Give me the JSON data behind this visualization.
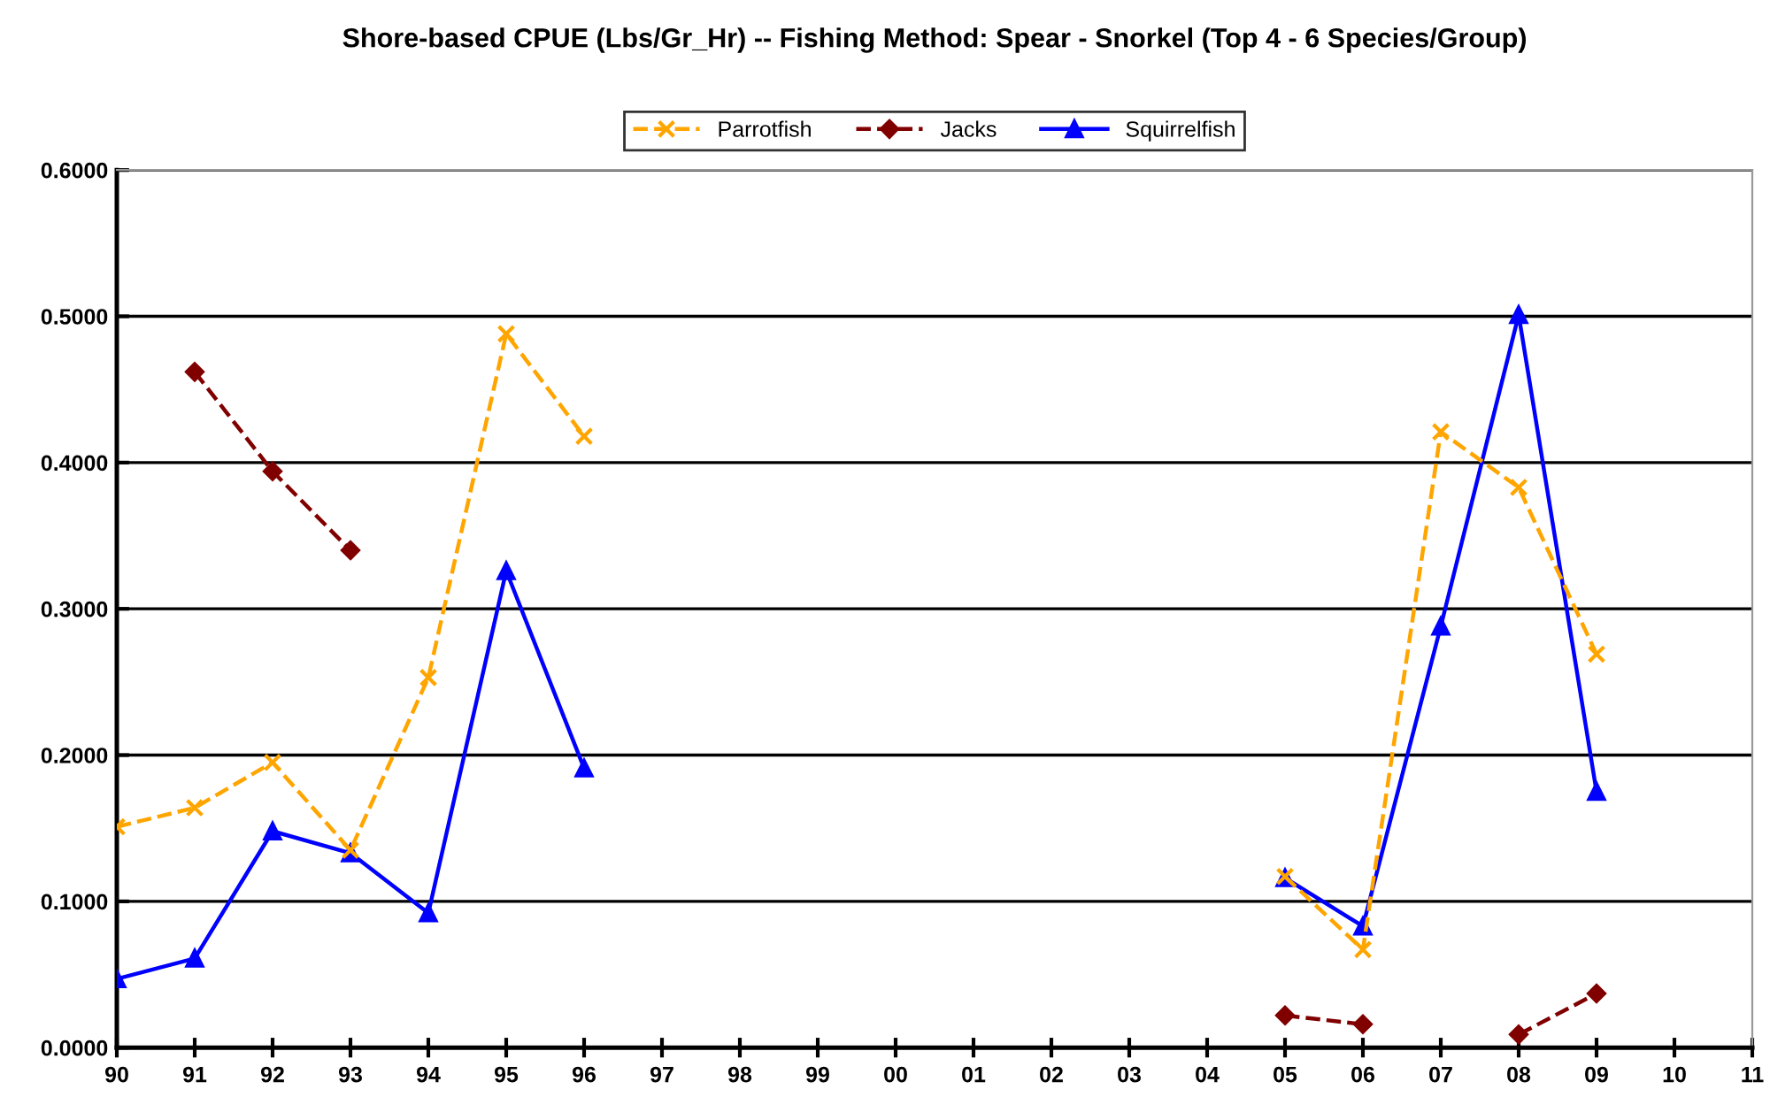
{
  "chart_data": {
    "type": "line",
    "title": "Shore-based CPUE (Lbs/Gr_Hr) -- Fishing Method: Spear - Snorkel (Top 4 - 6 Species/Group)",
    "categories": [
      "90",
      "91",
      "92",
      "93",
      "94",
      "95",
      "96",
      "97",
      "98",
      "99",
      "00",
      "01",
      "02",
      "03",
      "04",
      "05",
      "06",
      "07",
      "08",
      "09",
      "10",
      "11"
    ],
    "series": [
      {
        "name": "Parrotfish",
        "color": "#ffa500",
        "marker": "cross",
        "line_style": "dashed",
        "values": [
          0.151,
          0.164,
          0.195,
          0.135,
          0.253,
          0.488,
          0.418,
          null,
          null,
          null,
          null,
          null,
          null,
          null,
          null,
          0.117,
          0.067,
          0.421,
          0.383,
          0.269,
          null,
          null
        ]
      },
      {
        "name": "Jacks",
        "color": "#800000",
        "marker": "diamond",
        "line_style": "dashed",
        "values": [
          null,
          0.462,
          0.394,
          0.34,
          null,
          null,
          null,
          null,
          null,
          null,
          null,
          null,
          null,
          null,
          null,
          0.022,
          0.016,
          null,
          0.009,
          0.037,
          null,
          null
        ]
      },
      {
        "name": "Squirrelfish",
        "color": "#0000ff",
        "marker": "triangle",
        "line_style": "solid",
        "values": [
          0.047,
          0.061,
          0.148,
          0.133,
          0.092,
          0.326,
          0.191,
          null,
          null,
          null,
          null,
          null,
          null,
          null,
          null,
          0.116,
          0.083,
          0.288,
          0.501,
          0.175,
          null,
          null
        ]
      }
    ],
    "ylim": [
      0,
      0.6
    ],
    "yticks": [
      {
        "value": 0,
        "label": "0.0000"
      },
      {
        "value": 0.1,
        "label": "0.1000"
      },
      {
        "value": 0.2,
        "label": "0.2000"
      },
      {
        "value": 0.3,
        "label": "0.3000"
      },
      {
        "value": 0.4,
        "label": "0.4000"
      },
      {
        "value": 0.5,
        "label": "0.5000"
      },
      {
        "value": 0.6,
        "label": "0.6000"
      }
    ],
    "grid": "y",
    "legend": "top"
  }
}
